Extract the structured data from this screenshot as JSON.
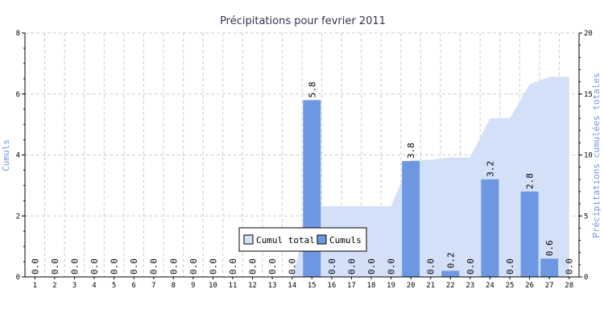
{
  "chart_data": {
    "type": "bar",
    "title": "Précipitations pour fevrier 2011",
    "ylabel_left": "Cumuls",
    "ylabel_right": "Précipitations cumulées totales",
    "ylim_left": [
      0,
      8
    ],
    "ylim_right": [
      0,
      20
    ],
    "yticks_left": [
      "0",
      "2",
      "4",
      "6",
      "8"
    ],
    "yticks_right": [
      "0",
      "5",
      "10",
      "15",
      "20"
    ],
    "categories": [
      "1",
      "2",
      "3",
      "4",
      "5",
      "6",
      "7",
      "8",
      "9",
      "10",
      "11",
      "12",
      "13",
      "14",
      "15",
      "16",
      "17",
      "18",
      "19",
      "20",
      "21",
      "22",
      "23",
      "24",
      "25",
      "26",
      "27",
      "28"
    ],
    "series": [
      {
        "name": "Cumul total",
        "type": "area",
        "axis": "right",
        "color": "#d3e0f8",
        "values": [
          0,
          0,
          0,
          0,
          0,
          0,
          0,
          0,
          0,
          0,
          0,
          0,
          0,
          0,
          5.8,
          5.8,
          5.8,
          5.8,
          5.8,
          9.6,
          9.6,
          9.8,
          9.8,
          13.0,
          13.0,
          15.8,
          16.4,
          16.4
        ]
      },
      {
        "name": "Cumuls",
        "type": "bar",
        "axis": "left",
        "color": "#6d97e0",
        "values": [
          0,
          0,
          0,
          0,
          0,
          0,
          0,
          0,
          0,
          0,
          0,
          0,
          0,
          0,
          5.8,
          0,
          0,
          0,
          0,
          3.8,
          0,
          0.2,
          0,
          3.2,
          0,
          2.8,
          0.6,
          0
        ]
      }
    ],
    "data_labels": [
      "0.0",
      "0.0",
      "0.0",
      "0.0",
      "0.0",
      "0.0",
      "0.0",
      "0.0",
      "0.0",
      "0.0",
      "0.0",
      "0.0",
      "0.0",
      "0.0",
      "5.8",
      "0.0",
      "0.0",
      "0.0",
      "0.0",
      "3.8",
      "0.0",
      "0.2",
      "0.0",
      "3.2",
      "0.0",
      "2.8",
      "0.6",
      "0.0"
    ],
    "grid": true,
    "legend_position": "bottom-center",
    "colors": {
      "axis_label": "#6d97e0",
      "title": "#333355",
      "grid": "#cccccc",
      "axis": "#000000"
    }
  }
}
